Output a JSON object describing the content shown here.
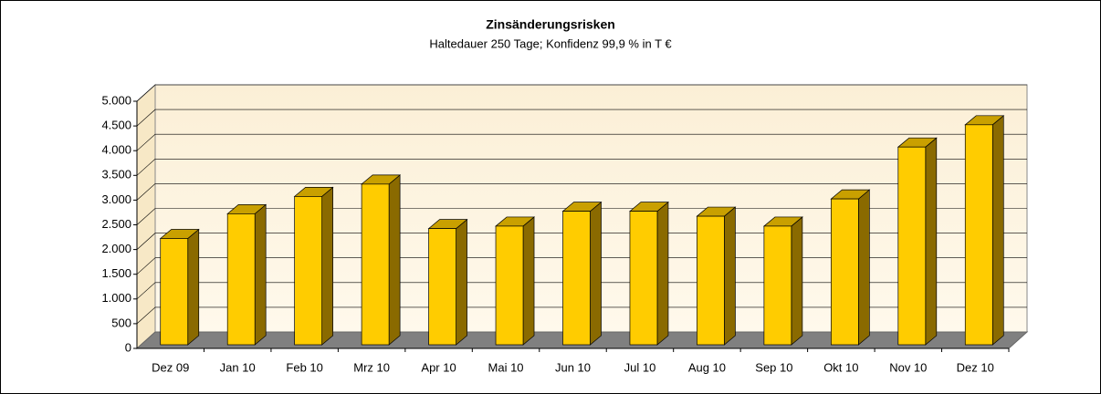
{
  "chart_data": {
    "type": "bar3d",
    "title": "Zinsänderungsrisken",
    "subtitle": "Haltedauer 250 Tage; Konfidenz 99,9 % in T €",
    "categories": [
      "Dez 09",
      "Jan 10",
      "Feb 10",
      "Mrz 10",
      "Apr 10",
      "Mai 10",
      "Jun 10",
      "Jul 10",
      "Aug 10",
      "Sep 10",
      "Okt 10",
      "Nov 10",
      "Dez 10"
    ],
    "values": [
      2150,
      2650,
      3000,
      3250,
      2350,
      2400,
      2700,
      2700,
      2600,
      2400,
      2950,
      4000,
      4450
    ],
    "color": "#ffcc00",
    "ylim": [
      0,
      5000
    ],
    "yticks": [
      0,
      500,
      {
        "value": 1000,
        "label": "1.000"
      },
      {
        "value": 1500,
        "label": "1.500"
      },
      {
        "value": 2000,
        "label": "2.000"
      },
      {
        "value": 2500,
        "label": "2.500"
      },
      {
        "value": 3000,
        "label": "3.000"
      },
      {
        "value": 3500,
        "label": "3.500"
      },
      {
        "value": 4000,
        "label": "4.000"
      },
      {
        "value": 4500,
        "label": "4.500"
      },
      {
        "value": 5000,
        "label": "5.000"
      }
    ],
    "grid": true
  }
}
